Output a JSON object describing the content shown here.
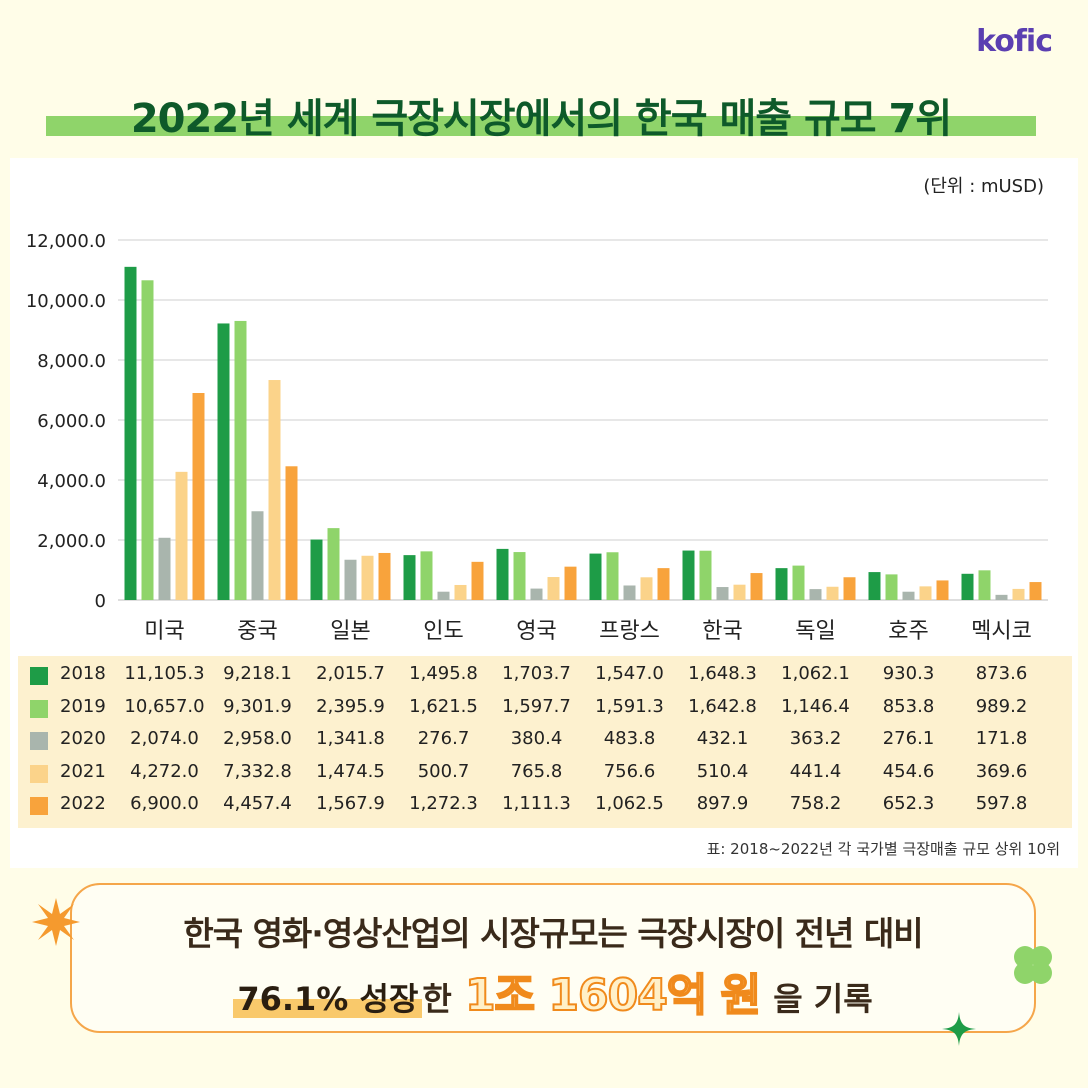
{
  "logo": "kofic",
  "title": "2022년 세계 극장시장에서의 한국 매출 규모 7위",
  "unit": "(단위 : mUSD)",
  "chart_data": {
    "type": "bar",
    "categories": [
      "미국",
      "중국",
      "일본",
      "인도",
      "영국",
      "프랑스",
      "한국",
      "독일",
      "호주",
      "멕시코"
    ],
    "series": [
      {
        "name": "2018",
        "color": "#1e9c47",
        "values": [
          11105.3,
          9218.1,
          2015.7,
          1495.8,
          1703.7,
          1547.0,
          1648.3,
          1062.1,
          930.3,
          873.6
        ],
        "labels": [
          "11,105.3",
          "9,218.1",
          "2,015.7",
          "1,495.8",
          "1,703.7",
          "1,547.0",
          "1,648.3",
          "1,062.1",
          "930.3",
          "873.6"
        ]
      },
      {
        "name": "2019",
        "color": "#8fd46a",
        "values": [
          10657.0,
          9301.9,
          2395.9,
          1621.5,
          1597.7,
          1591.3,
          1642.8,
          1146.4,
          853.8,
          989.2
        ],
        "labels": [
          "10,657.0",
          "9,301.9",
          "2,395.9",
          "1,621.5",
          "1,597.7",
          "1,591.3",
          "1,642.8",
          "1,146.4",
          "853.8",
          "989.2"
        ]
      },
      {
        "name": "2020",
        "color": "#a9b5ad",
        "values": [
          2074.0,
          2958.0,
          1341.8,
          276.7,
          380.4,
          483.8,
          432.1,
          363.2,
          276.1,
          171.8
        ],
        "labels": [
          "2,074.0",
          "2,958.0",
          "1,341.8",
          "276.7",
          "380.4",
          "483.8",
          "432.1",
          "363.2",
          "276.1",
          "171.8"
        ]
      },
      {
        "name": "2021",
        "color": "#fbd38a",
        "values": [
          4272.0,
          7332.8,
          1474.5,
          500.7,
          765.8,
          756.6,
          510.4,
          441.4,
          454.6,
          369.6
        ],
        "labels": [
          "4,272.0",
          "7,332.8",
          "1,474.5",
          "500.7",
          "765.8",
          "756.6",
          "510.4",
          "441.4",
          "454.6",
          "369.6"
        ]
      },
      {
        "name": "2022",
        "color": "#f8a33c",
        "values": [
          6900.0,
          4457.4,
          1567.9,
          1272.3,
          1111.3,
          1062.5,
          897.9,
          758.2,
          652.3,
          597.8
        ],
        "labels": [
          "6,900.0",
          "4,457.4",
          "1,567.9",
          "1,272.3",
          "1,111.3",
          "1,062.5",
          "897.9",
          "758.2",
          "652.3",
          "597.8"
        ]
      }
    ],
    "ylim": [
      0,
      12000
    ],
    "yticks": [
      0,
      2000,
      4000,
      6000,
      8000,
      10000,
      12000
    ],
    "ytick_labels": [
      "0",
      "2,000.0",
      "4,000.0",
      "6,000.0",
      "8,000.0",
      "10,000.0",
      "12,000.0"
    ],
    "grid": true
  },
  "source": "표: 2018~2022년 각 국가별 극장매출 규모 상위 10위",
  "callout": {
    "line1": "한국 영화·영상산업의 시장규모는 극장시장이 전년 대비",
    "highlight": "76.1% 성장",
    "connector": "한",
    "amount": "1조 1604억 원",
    "tail": "을 기록"
  }
}
